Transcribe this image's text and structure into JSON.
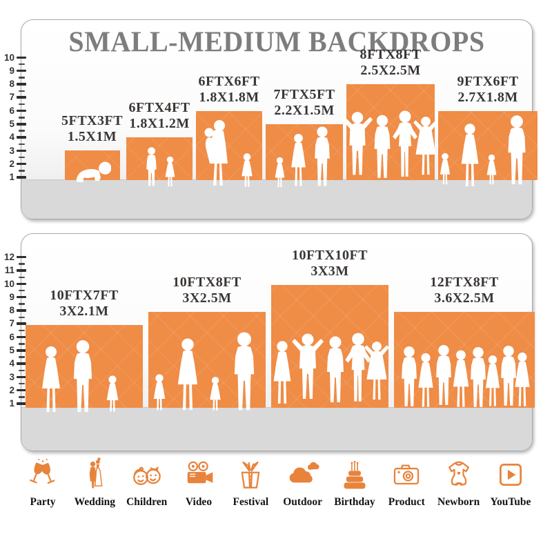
{
  "title": "SMALL-MEDIUM BACKDROPS",
  "colors": {
    "backdrop_orange": "#EF8C46",
    "icon_orange": "#E8833C",
    "title_gray": "#7D7D7D",
    "floor_gray": "#D9D9D9",
    "tick_dark": "#2E2E2E"
  },
  "panels": {
    "top": {
      "ruler_labels": [
        "1",
        "2",
        "3",
        "4",
        "5",
        "6",
        "7",
        "8",
        "9",
        "10"
      ],
      "bars": [
        {
          "size_ft": "5FTX3FT",
          "size_m": "1.5X1M",
          "width_ft": 5,
          "height_ft": 3
        },
        {
          "size_ft": "6FTX4FT",
          "size_m": "1.8X1.2M",
          "width_ft": 6,
          "height_ft": 4
        },
        {
          "size_ft": "6FTX6FT",
          "size_m": "1.8X1.8M",
          "width_ft": 6,
          "height_ft": 6
        },
        {
          "size_ft": "7FTX5FT",
          "size_m": "2.2X1.5M",
          "width_ft": 7,
          "height_ft": 5
        },
        {
          "size_ft": "8FTX8FT",
          "size_m": "2.5X2.5M",
          "width_ft": 8,
          "height_ft": 8
        },
        {
          "size_ft": "9FTX6FT",
          "size_m": "2.7X1.8M",
          "width_ft": 9,
          "height_ft": 6
        }
      ]
    },
    "bottom": {
      "ruler_labels": [
        "1",
        "2",
        "3",
        "4",
        "5",
        "6",
        "7",
        "8",
        "9",
        "10",
        "11",
        "12"
      ],
      "bars": [
        {
          "size_ft": "10FTX7FT",
          "size_m": "3X2.1M",
          "width_ft": 10,
          "height_ft": 7
        },
        {
          "size_ft": "10FTX8FT",
          "size_m": "3X2.5M",
          "width_ft": 10,
          "height_ft": 8
        },
        {
          "size_ft": "10FTX10FT",
          "size_m": "3X3M",
          "width_ft": 10,
          "height_ft": 10
        },
        {
          "size_ft": "12FTX8FT",
          "size_m": "3.6X2.5M",
          "width_ft": 12,
          "height_ft": 8
        }
      ]
    }
  },
  "icons": {
    "items": [
      {
        "label": "Party"
      },
      {
        "label": "Wedding"
      },
      {
        "label": "Children"
      },
      {
        "label": "Video"
      },
      {
        "label": "Festival"
      },
      {
        "label": "Outdoor"
      },
      {
        "label": "Birthday"
      },
      {
        "label": "Product"
      },
      {
        "label": "Newborn"
      },
      {
        "label": "YouTube"
      }
    ]
  }
}
